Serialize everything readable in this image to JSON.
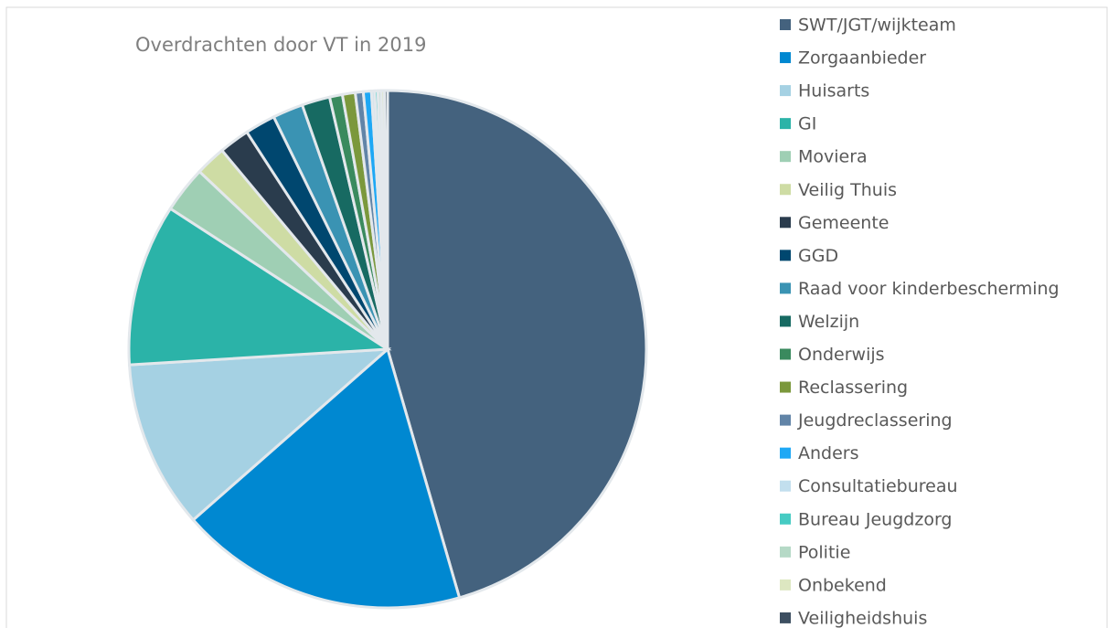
{
  "chart_data": {
    "type": "pie",
    "title": "Overdrachten door VT in 2019",
    "categories": [
      "SWT/JGT/wijkteam",
      "Zorgaanbieder",
      "Huisarts",
      "GI",
      "Moviera",
      "Veilig Thuis",
      "Gemeente",
      "GGD",
      "Raad voor kinderbescherming",
      "Welzijn",
      "Onderwijs",
      "Reclassering",
      "Jeugdreclassering",
      "Anders",
      "Consultatiebureau",
      "Bureau Jeugdzorg",
      "Politie",
      "Onbekend",
      "Veiligheidshuis"
    ],
    "values": [
      45.5,
      18,
      10.5,
      10.1,
      2.9,
      1.9,
      1.9,
      1.9,
      1.9,
      1.75,
      0.8,
      0.8,
      0.5,
      0.5,
      0.2,
      0.2,
      0.2,
      0.2,
      0.2
    ],
    "colors": [
      "#44627e",
      "#0088d1",
      "#a5d1e3",
      "#2bb3a8",
      "#9fcfb4",
      "#cedca4",
      "#2a3c4d",
      "#00476f",
      "#3a93b3",
      "#176a62",
      "#3a8a5e",
      "#7b983c",
      "#6184a7",
      "#1ea8f5",
      "#c2dfee",
      "#46cbc3",
      "#b5d9c6",
      "#dde7c1",
      "#3d4f61"
    ],
    "legend": "right"
  }
}
